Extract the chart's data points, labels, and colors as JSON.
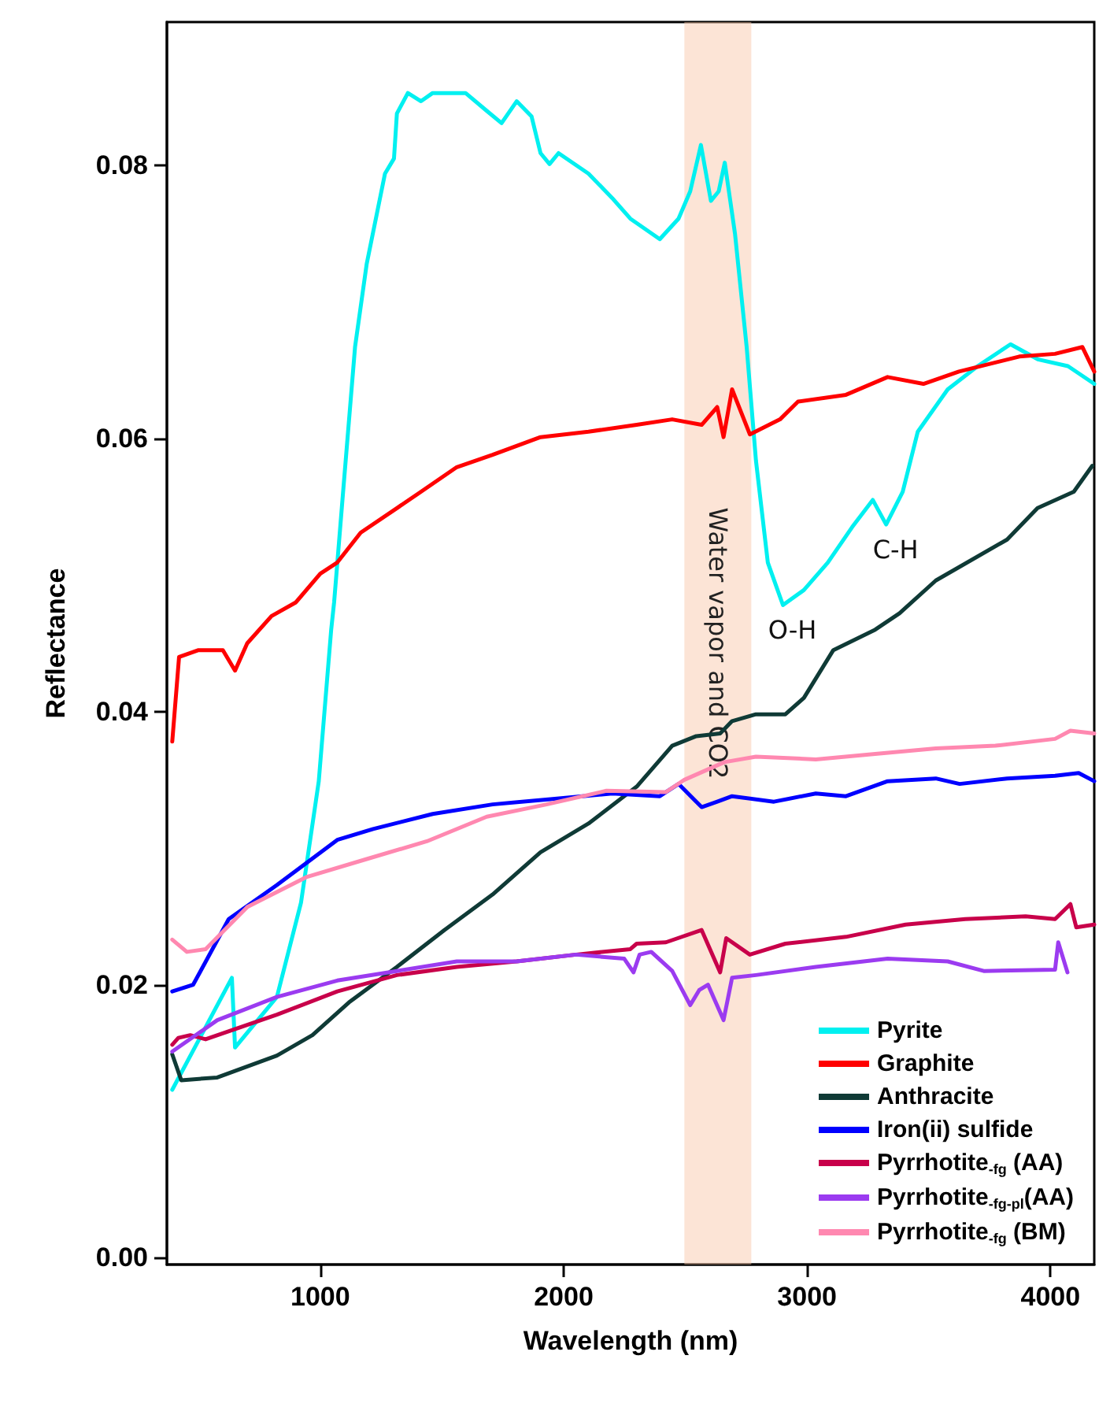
{
  "chart_data": {
    "type": "line",
    "xlabel": "Wavelength (nm)",
    "ylabel": "Reflectance",
    "xlim": [
      370,
      4180
    ],
    "xticks": [
      1000,
      2000,
      3000,
      4000
    ],
    "ylim": [
      -0.0005,
      0.0905
    ],
    "yticks": [
      {
        "value": 0,
        "label": "0.00"
      },
      {
        "value": 0.02,
        "label": "0.02"
      },
      {
        "value": 0.04,
        "label": "0.04"
      },
      {
        "value": 0.06,
        "label": "0.06"
      },
      {
        "value": 0.08,
        "label": "0.08"
      }
    ],
    "grid": false,
    "legend": "bottom right",
    "marker": "none",
    "line_style": "solid",
    "bands": [
      {
        "axis": "x",
        "from": 2496,
        "to": 2771,
        "label": "Water vapor and CO2",
        "color": "#f8c4a4"
      }
    ],
    "annotations": [
      {
        "text": "O-H",
        "x": 2901,
        "y": 0.0478
      },
      {
        "text": "C-H",
        "x": 3325,
        "y": 0.0537
      }
    ],
    "series": [
      {
        "name": "Pyrite",
        "color": "#00f0f0",
        "x": [
          392,
          637,
          650,
          822,
          921,
          994,
          1045,
          1057,
          1094,
          1143,
          1191,
          1266,
          1303,
          1315,
          1360,
          1414,
          1462,
          1597,
          1684,
          1745,
          1807,
          1868,
          1905,
          1942,
          1979,
          2102,
          2200,
          2274,
          2395,
          2472,
          2520,
          2564,
          2605,
          2637,
          2662,
          2704,
          2752,
          2790,
          2839,
          2901,
          2987,
          3085,
          3185,
          3270,
          3325,
          3393,
          3455,
          3578,
          3701,
          3836,
          3948,
          4072,
          4180
        ],
        "values": [
          0.0123,
          0.0205,
          0.0154,
          0.0191,
          0.026,
          0.0349,
          0.046,
          0.048,
          0.0561,
          0.0667,
          0.0728,
          0.0794,
          0.0805,
          0.0838,
          0.0853,
          0.0847,
          0.0853,
          0.0853,
          0.084,
          0.0831,
          0.0847,
          0.0836,
          0.0809,
          0.0801,
          0.0809,
          0.0794,
          0.0776,
          0.0761,
          0.0746,
          0.0761,
          0.0781,
          0.0815,
          0.0774,
          0.0781,
          0.0802,
          0.075,
          0.0667,
          0.0584,
          0.0509,
          0.0478,
          0.0489,
          0.0509,
          0.0535,
          0.0555,
          0.0537,
          0.0561,
          0.0605,
          0.0636,
          0.0653,
          0.0669,
          0.0658,
          0.0653,
          0.064
        ]
      },
      {
        "name": "Graphite",
        "color": "#ff0000",
        "x": [
          392,
          420,
          500,
          600,
          650,
          700,
          800,
          900,
          1000,
          1069,
          1166,
          1315,
          1414,
          1561,
          1708,
          1905,
          2102,
          2300,
          2446,
          2567,
          2631,
          2657,
          2692,
          2765,
          2889,
          2963,
          3160,
          3331,
          3478,
          3624,
          3872,
          4019,
          4131,
          4180
        ],
        "values": [
          0.0378,
          0.044,
          0.0445,
          0.0445,
          0.043,
          0.045,
          0.047,
          0.048,
          0.0501,
          0.0509,
          0.0531,
          0.0549,
          0.0561,
          0.0579,
          0.0588,
          0.0601,
          0.0605,
          0.061,
          0.0614,
          0.061,
          0.0623,
          0.0601,
          0.0636,
          0.0603,
          0.0614,
          0.0627,
          0.0632,
          0.0645,
          0.064,
          0.0649,
          0.066,
          0.0662,
          0.0667,
          0.0649
        ]
      },
      {
        "name": "Anthracite",
        "color": "#0f3a36",
        "x": [
          392,
          429,
          577,
          822,
          968,
          1118,
          1315,
          1510,
          1708,
          1905,
          2102,
          2300,
          2446,
          2545,
          2643,
          2692,
          2790,
          2911,
          2987,
          3108,
          3280,
          3380,
          3529,
          3822,
          3947,
          4096,
          4172
        ],
        "values": [
          0.0149,
          0.013,
          0.0132,
          0.0148,
          0.0163,
          0.0187,
          0.0213,
          0.024,
          0.0266,
          0.0297,
          0.0318,
          0.0345,
          0.0375,
          0.0382,
          0.0384,
          0.0393,
          0.0398,
          0.0398,
          0.041,
          0.0445,
          0.046,
          0.0472,
          0.0496,
          0.0526,
          0.0549,
          0.0561,
          0.058
        ]
      },
      {
        "name": "Iron(ii) sulfide",
        "color": "#0000ff",
        "x": [
          392,
          478,
          624,
          822,
          1070,
          1217,
          1462,
          1708,
          1955,
          2200,
          2395,
          2472,
          2567,
          2631,
          2692,
          2864,
          3036,
          3160,
          3331,
          3529,
          3627,
          3822,
          4019,
          4116,
          4180
        ],
        "values": [
          0.0195,
          0.02,
          0.0248,
          0.0273,
          0.0306,
          0.0314,
          0.0325,
          0.0332,
          0.0336,
          0.034,
          0.0338,
          0.0347,
          0.033,
          0.0334,
          0.0338,
          0.0334,
          0.034,
          0.0338,
          0.0349,
          0.0351,
          0.0347,
          0.0351,
          0.0353,
          0.0355,
          0.0349
        ]
      },
      {
        "name": "Pyrrhotite$_{-fg}$ (AA)",
        "color": "#c8004a",
        "x": [
          392,
          417,
          466,
          529,
          822,
          1070,
          1315,
          1561,
          1807,
          2051,
          2274,
          2300,
          2420,
          2567,
          2643,
          2668,
          2765,
          2911,
          3160,
          3405,
          3650,
          3898,
          4019,
          4082,
          4106,
          4180
        ],
        "values": [
          0.0156,
          0.0161,
          0.0163,
          0.016,
          0.0178,
          0.0195,
          0.0207,
          0.0213,
          0.0217,
          0.0222,
          0.0226,
          0.023,
          0.0231,
          0.024,
          0.0209,
          0.0234,
          0.0222,
          0.023,
          0.0235,
          0.0244,
          0.0248,
          0.025,
          0.0248,
          0.0259,
          0.0242,
          0.0244
        ]
      },
      {
        "name": "Pyrrhotite$_{-fg-pl}$(AA)",
        "color": "#9b3bf0",
        "x": [
          392,
          577,
          822,
          1070,
          1315,
          1561,
          1807,
          2051,
          2249,
          2287,
          2312,
          2360,
          2446,
          2520,
          2557,
          2593,
          2657,
          2692,
          2790,
          3036,
          3331,
          3578,
          3726,
          4019,
          4032,
          4070
        ],
        "values": [
          0.0151,
          0.0174,
          0.0191,
          0.0203,
          0.021,
          0.0217,
          0.0217,
          0.0222,
          0.0219,
          0.0209,
          0.0222,
          0.0224,
          0.021,
          0.0185,
          0.0196,
          0.02,
          0.0174,
          0.0205,
          0.0207,
          0.0213,
          0.0219,
          0.0217,
          0.021,
          0.0211,
          0.0231,
          0.0209
        ]
      },
      {
        "name": "Pyrrhotite$_{-fg}$ (BM)",
        "color": "#ff88b0",
        "x": [
          392,
          452,
          529,
          701,
          946,
          1191,
          1438,
          1684,
          1930,
          2176,
          2420,
          2496,
          2661,
          2790,
          3036,
          3280,
          3529,
          3774,
          4019,
          4082,
          4180
        ],
        "values": [
          0.0233,
          0.0224,
          0.0226,
          0.0257,
          0.0279,
          0.0292,
          0.0305,
          0.0323,
          0.0332,
          0.0342,
          0.0341,
          0.035,
          0.0363,
          0.0367,
          0.0365,
          0.0369,
          0.0373,
          0.0375,
          0.038,
          0.0386,
          0.0384
        ]
      }
    ]
  }
}
